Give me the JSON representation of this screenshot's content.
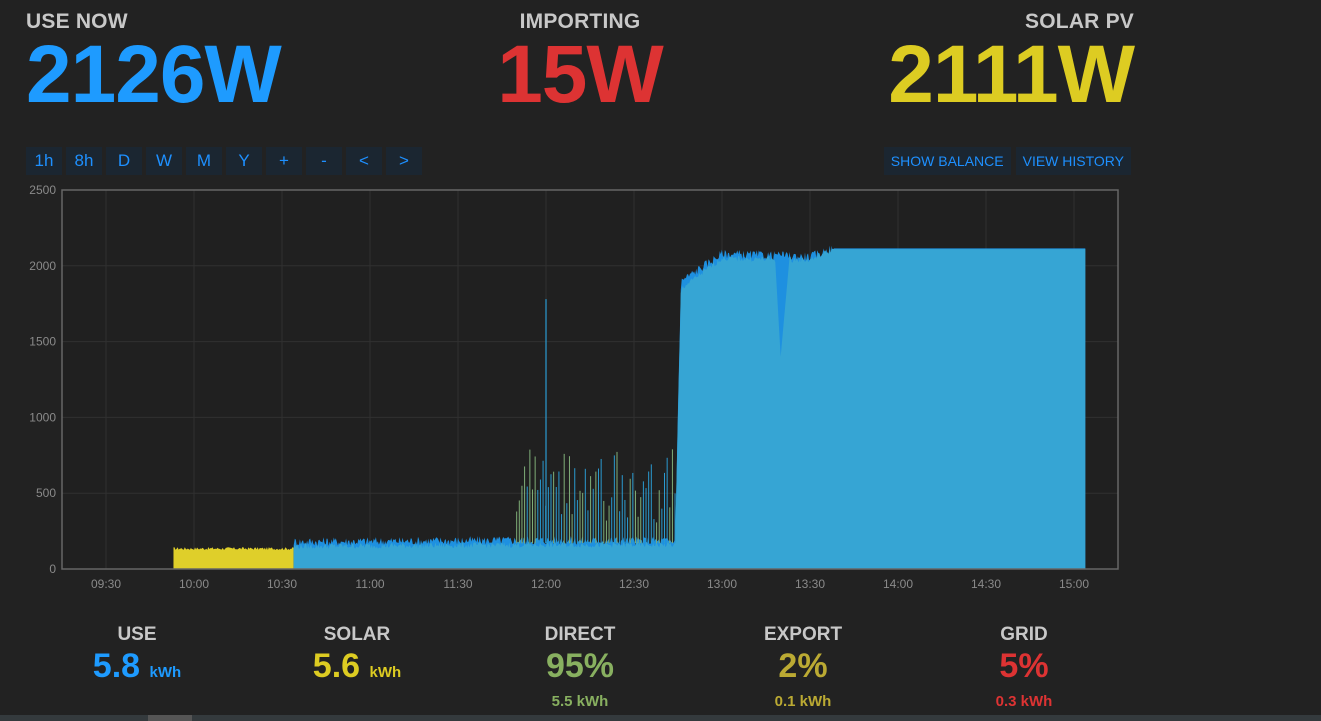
{
  "stats": {
    "use_now": {
      "label": "USE NOW",
      "value": "2126W",
      "color": "#1e9bff"
    },
    "importing": {
      "label": "IMPORTING",
      "value": "15W",
      "color": "#dd3333"
    },
    "solar_pv": {
      "label": "SOLAR PV",
      "value": "2111W",
      "color": "#ddcc22"
    }
  },
  "range_buttons": [
    "1h",
    "8h",
    "D",
    "W",
    "M",
    "Y",
    "+",
    "-",
    "<",
    ">"
  ],
  "right_buttons": {
    "balance": "SHOW BALANCE",
    "history": "VIEW HISTORY"
  },
  "chart_data": {
    "type": "area",
    "y_ticks": [
      "0",
      "500",
      "1000",
      "1500",
      "2000",
      "2500"
    ],
    "x_ticks": [
      "09:30",
      "10:00",
      "10:30",
      "11:00",
      "11:30",
      "12:00",
      "12:30",
      "13:00",
      "13:30",
      "14:00",
      "14:30",
      "15:00"
    ],
    "ylim": [
      0,
      2500
    ],
    "xlim_minutes": [
      555,
      915
    ],
    "grid": true,
    "series": [
      {
        "color": "#dfcf2a",
        "x": [
          "09:53",
          "10:34"
        ],
        "values": [
          135,
          135
        ]
      },
      {
        "color": "#1e90e0",
        "x": [
          "10:34",
          "11:50",
          "12:44",
          "12:46",
          "13:00",
          "13:30",
          "13:38",
          "15:04"
        ],
        "values": [
          180,
          190,
          185,
          1900,
          2080,
          2060,
          2115,
          2115
        ]
      },
      {
        "color": "#36a5d4",
        "x": [
          "10:34",
          "11:50",
          "12:44",
          "12:46",
          "13:00",
          "13:30",
          "13:38",
          "15:04"
        ],
        "values": [
          150,
          160,
          160,
          1850,
          2050,
          2040,
          2110,
          2110
        ]
      }
    ]
  },
  "summary": [
    {
      "title": "USE",
      "value": "5.8",
      "unit": "kWh",
      "sub": "",
      "color": "#1e9bff"
    },
    {
      "title": "SOLAR",
      "value": "5.6",
      "unit": "kWh",
      "sub": "",
      "color": "#ddcc22"
    },
    {
      "title": "DIRECT",
      "value": "95%",
      "unit": "",
      "sub": "5.5 kWh",
      "color": "#88b060"
    },
    {
      "title": "EXPORT",
      "value": "2%",
      "unit": "",
      "sub": "0.1 kWh",
      "color": "#bbaa33"
    },
    {
      "title": "GRID",
      "value": "5%",
      "unit": "",
      "sub": "0.3 kWh",
      "color": "#dd3333"
    }
  ]
}
